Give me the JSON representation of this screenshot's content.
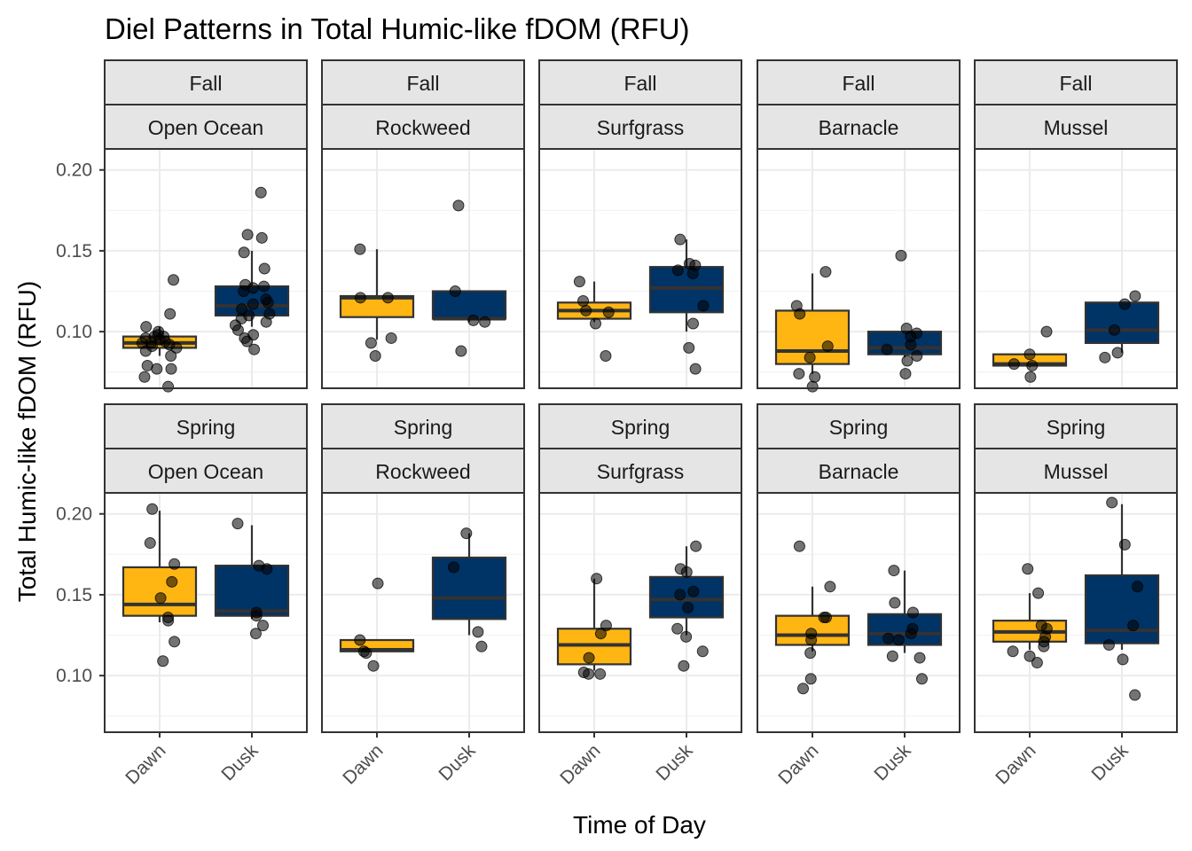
{
  "chart_data": {
    "type": "box",
    "title": "Diel Patterns in Total Humic-like fDOM (RFU)",
    "xlabel": "Time of Day",
    "ylabel": "Total Humic-like fDOM (RFU)",
    "categories": [
      "Dawn",
      "Dusk"
    ],
    "ylim": [
      0.065,
      0.213
    ],
    "yticks": [
      0.1,
      0.15,
      0.2
    ],
    "ytick_labels": [
      "0.10",
      "0.15",
      "0.20"
    ],
    "grid": true,
    "legend": "none",
    "colors": {
      "Dawn": "#FFB612",
      "Dusk": "#003366"
    },
    "panels": [
      {
        "season": "Fall",
        "site": "Open Ocean",
        "Dawn": {
          "box": [
            0.085,
            0.09,
            0.093,
            0.097,
            0.103
          ],
          "points": [
            0.066,
            0.072,
            0.077,
            0.077,
            0.079,
            0.085,
            0.088,
            0.09,
            0.091,
            0.092,
            0.093,
            0.093,
            0.094,
            0.095,
            0.096,
            0.097,
            0.097,
            0.098,
            0.1,
            0.103,
            0.111,
            0.132
          ]
        },
        "Dusk": {
          "box": [
            0.103,
            0.11,
            0.116,
            0.128,
            0.15
          ],
          "points": [
            0.089,
            0.094,
            0.096,
            0.098,
            0.101,
            0.104,
            0.106,
            0.108,
            0.11,
            0.111,
            0.114,
            0.117,
            0.118,
            0.12,
            0.125,
            0.127,
            0.128,
            0.129,
            0.139,
            0.149,
            0.158,
            0.16,
            0.186
          ]
        }
      },
      {
        "season": "Fall",
        "site": "Rockweed",
        "Dawn": {
          "box": [
            0.095,
            0.109,
            0.121,
            0.122,
            0.151
          ],
          "points": [
            0.085,
            0.093,
            0.096,
            0.121,
            0.121,
            0.151
          ]
        },
        "Dusk": {
          "box": [
            0.106,
            0.108,
            0.108,
            0.125,
            0.125
          ],
          "points": [
            0.088,
            0.106,
            0.107,
            0.125,
            0.178
          ]
        }
      },
      {
        "season": "Fall",
        "site": "Surfgrass",
        "Dawn": {
          "box": [
            0.106,
            0.108,
            0.113,
            0.118,
            0.131
          ],
          "points": [
            0.085,
            0.105,
            0.112,
            0.113,
            0.119,
            0.131
          ]
        },
        "Dusk": {
          "box": [
            0.1,
            0.112,
            0.127,
            0.14,
            0.157
          ],
          "points": [
            0.077,
            0.09,
            0.105,
            0.116,
            0.136,
            0.138,
            0.141,
            0.142,
            0.157
          ]
        }
      },
      {
        "season": "Fall",
        "site": "Barnacle",
        "Dawn": {
          "box": [
            0.074,
            0.08,
            0.088,
            0.113,
            0.136
          ],
          "points": [
            0.066,
            0.072,
            0.074,
            0.084,
            0.091,
            0.111,
            0.116,
            0.137
          ]
        },
        "Dusk": {
          "box": [
            0.084,
            0.086,
            0.09,
            0.1,
            0.1
          ],
          "points": [
            0.074,
            0.082,
            0.085,
            0.089,
            0.092,
            0.097,
            0.099,
            0.102,
            0.147
          ]
        }
      },
      {
        "season": "Fall",
        "site": "Mussel",
        "Dawn": {
          "box": [
            0.078,
            0.079,
            0.08,
            0.086,
            0.086
          ],
          "points": [
            0.072,
            0.079,
            0.08,
            0.086,
            0.1
          ]
        },
        "Dusk": {
          "box": [
            0.087,
            0.093,
            0.101,
            0.118,
            0.118
          ],
          "points": [
            0.084,
            0.087,
            0.101,
            0.117,
            0.122
          ]
        }
      },
      {
        "season": "Spring",
        "site": "Open Ocean",
        "Dawn": {
          "box": [
            0.133,
            0.137,
            0.144,
            0.167,
            0.202
          ],
          "points": [
            0.109,
            0.121,
            0.134,
            0.136,
            0.148,
            0.158,
            0.169,
            0.182,
            0.203
          ]
        },
        "Dusk": {
          "box": [
            0.135,
            0.137,
            0.14,
            0.168,
            0.193
          ],
          "points": [
            0.126,
            0.131,
            0.137,
            0.139,
            0.166,
            0.168,
            0.194
          ]
        }
      },
      {
        "season": "Spring",
        "site": "Rockweed",
        "Dawn": {
          "box": [
            0.115,
            0.115,
            0.116,
            0.122,
            0.122
          ],
          "points": [
            0.106,
            0.114,
            0.115,
            0.122,
            0.157
          ]
        },
        "Dusk": {
          "box": [
            0.125,
            0.135,
            0.148,
            0.173,
            0.188
          ],
          "points": [
            0.118,
            0.127,
            0.167,
            0.188
          ]
        }
      },
      {
        "season": "Spring",
        "site": "Surfgrass",
        "Dawn": {
          "box": [
            0.103,
            0.107,
            0.119,
            0.129,
            0.16
          ],
          "points": [
            0.101,
            0.101,
            0.102,
            0.111,
            0.126,
            0.131,
            0.16
          ]
        },
        "Dusk": {
          "box": [
            0.125,
            0.136,
            0.147,
            0.161,
            0.18
          ],
          "points": [
            0.106,
            0.115,
            0.124,
            0.129,
            0.142,
            0.15,
            0.152,
            0.164,
            0.166,
            0.18
          ]
        }
      },
      {
        "season": "Spring",
        "site": "Barnacle",
        "Dawn": {
          "box": [
            0.115,
            0.119,
            0.125,
            0.137,
            0.155
          ],
          "points": [
            0.092,
            0.098,
            0.114,
            0.122,
            0.126,
            0.136,
            0.136,
            0.155,
            0.18
          ]
        },
        "Dusk": {
          "box": [
            0.114,
            0.119,
            0.126,
            0.138,
            0.165
          ],
          "points": [
            0.098,
            0.111,
            0.112,
            0.122,
            0.123,
            0.126,
            0.129,
            0.139,
            0.145,
            0.165
          ]
        }
      },
      {
        "season": "Spring",
        "site": "Mussel",
        "Dawn": {
          "box": [
            0.116,
            0.121,
            0.127,
            0.134,
            0.151
          ],
          "points": [
            0.108,
            0.112,
            0.115,
            0.118,
            0.121,
            0.124,
            0.129,
            0.131,
            0.151,
            0.166
          ]
        },
        "Dusk": {
          "box": [
            0.116,
            0.12,
            0.128,
            0.162,
            0.206
          ],
          "points": [
            0.088,
            0.11,
            0.119,
            0.131,
            0.155,
            0.181,
            0.207
          ]
        }
      }
    ]
  }
}
